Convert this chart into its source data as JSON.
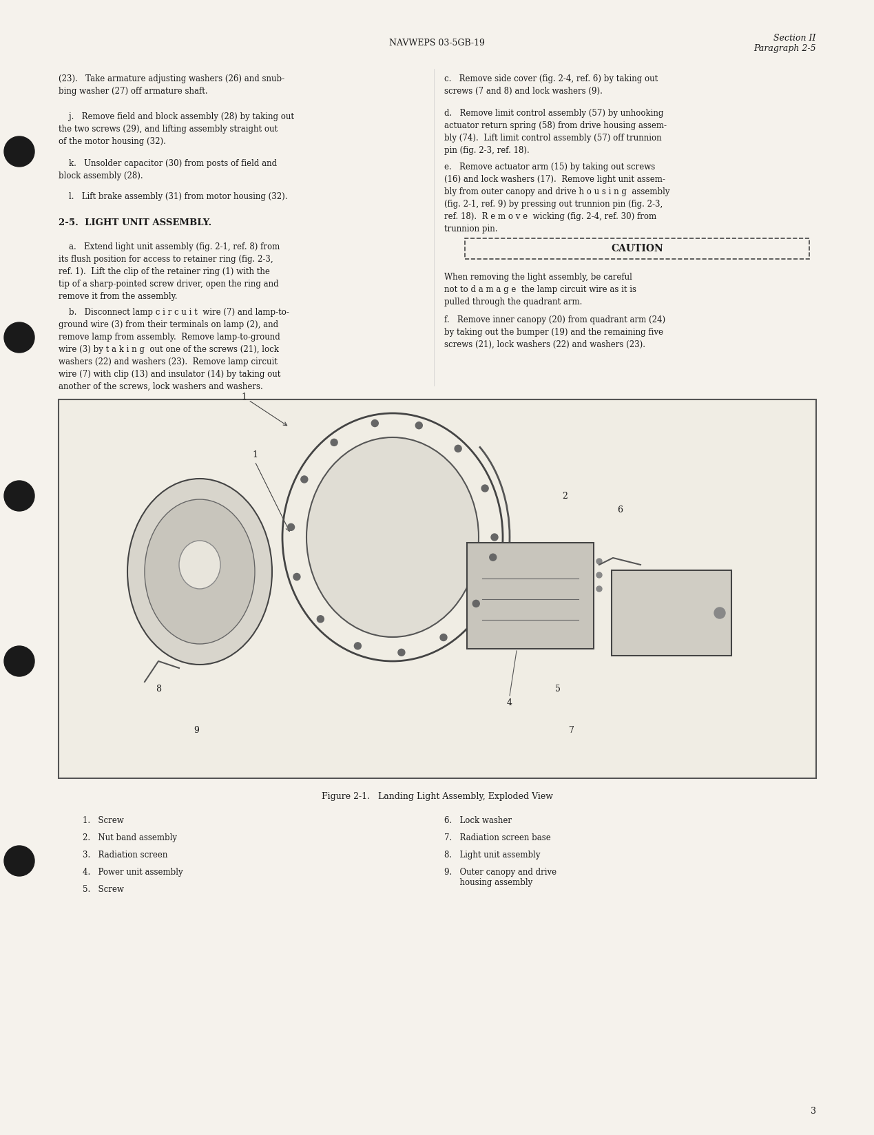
{
  "page_bg": "#f5f2ec",
  "header_center": "NAVWEPS 03-5GB-19",
  "header_right_line1": "Section II",
  "header_right_line2": "Paragraph 2-5",
  "page_number": "3",
  "left_col_paragraphs": [
    "(23).   Take armature adjusting washers (26) and snub-\nbing washer (27) off armature shaft.",
    "j.   Remove field and block assembly (28) by taking out\nthe two screws (29), and lifting assembly straight out\nof the motor housing (32).",
    "k.   Unsolder capacitor (30) from posts of field and\nblock assembly (28).",
    "l.   Lift brake assembly (31) from motor housing (32).",
    "2-5.  LIGHT UNIT ASSEMBLY.",
    "a.   Extend light unit assembly (fig. 2-1, ref. 8) from\nits flush position for access to retainer ring (fig. 2-3,\nref. 1).  Lift the clip of the retainer ring (1) with the\ntip of a sharp-pointed screw driver, open the ring and\nremove it from the assembly.",
    "b.   Disconnect lamp c i r c u i t  wire (7) and lamp-to-\nground wire (3) from their terminals on lamp (2), and\nremove lamp from assembly.  Remove lamp-to-ground\nwire (3) by taking out one of the screws (21), lock\nwashers (22) and washers (23).  Remove lamp circuit\nwire (7) with clip (13) and insulator (14) by taking out\nanother of the screws, lock washers and washers."
  ],
  "right_col_paragraphs": [
    "c.   Remove side cover (fig. 2-4, ref. 6) by taking out\nscrews (7 and 8) and lock washers (9).",
    "d.   Remove limit control assembly (57) by unhooking\nactuator return spring (58) from drive housing assem-\nbly (74).  Lift limit control assembly (57) off trunnion\npin (fig. 2-3, ref. 18).",
    "e.   Remove actuator arm (15) by taking out screws\n(16) and lock washers (17).  Remove light unit assem-\nbly from outer canopy and drive h o u s i n g  assembly\n(fig. 2-1, ref. 9) by pressing out trunnion pin (fig. 2-3,\nref. 18).  R e m o v e  wicking (fig. 2-4, ref. 30) from\ntrunnion pin.",
    "CAUTION",
    "When removing the light assembly, be careful\nnot to d a m a g e  the lamp circuit wire as it is\npulled through the quadrant arm.",
    "f.   Remove inner canopy (20) from quadrant arm (24)\nby taking out the bumper (19) and the remaining five\nscrews (21), lock washers (22) and washers (23)."
  ],
  "figure_caption": "Figure 2-1.   Landing Light Assembly, Exploded View",
  "legend_left": [
    "1.   Screw",
    "2.   Nut band assembly",
    "3.   Radiation screen",
    "4.   Power unit assembly",
    "5.   Screw"
  ],
  "legend_right": [
    "6.   Lock washer",
    "7.   Radiation screen base",
    "8.   Light unit assembly",
    "9.   Outer canopy and drive\n      housing assembly"
  ],
  "text_color": "#1a1a1a",
  "hole_color": "#1a1a1a",
  "border_color": "#333333"
}
